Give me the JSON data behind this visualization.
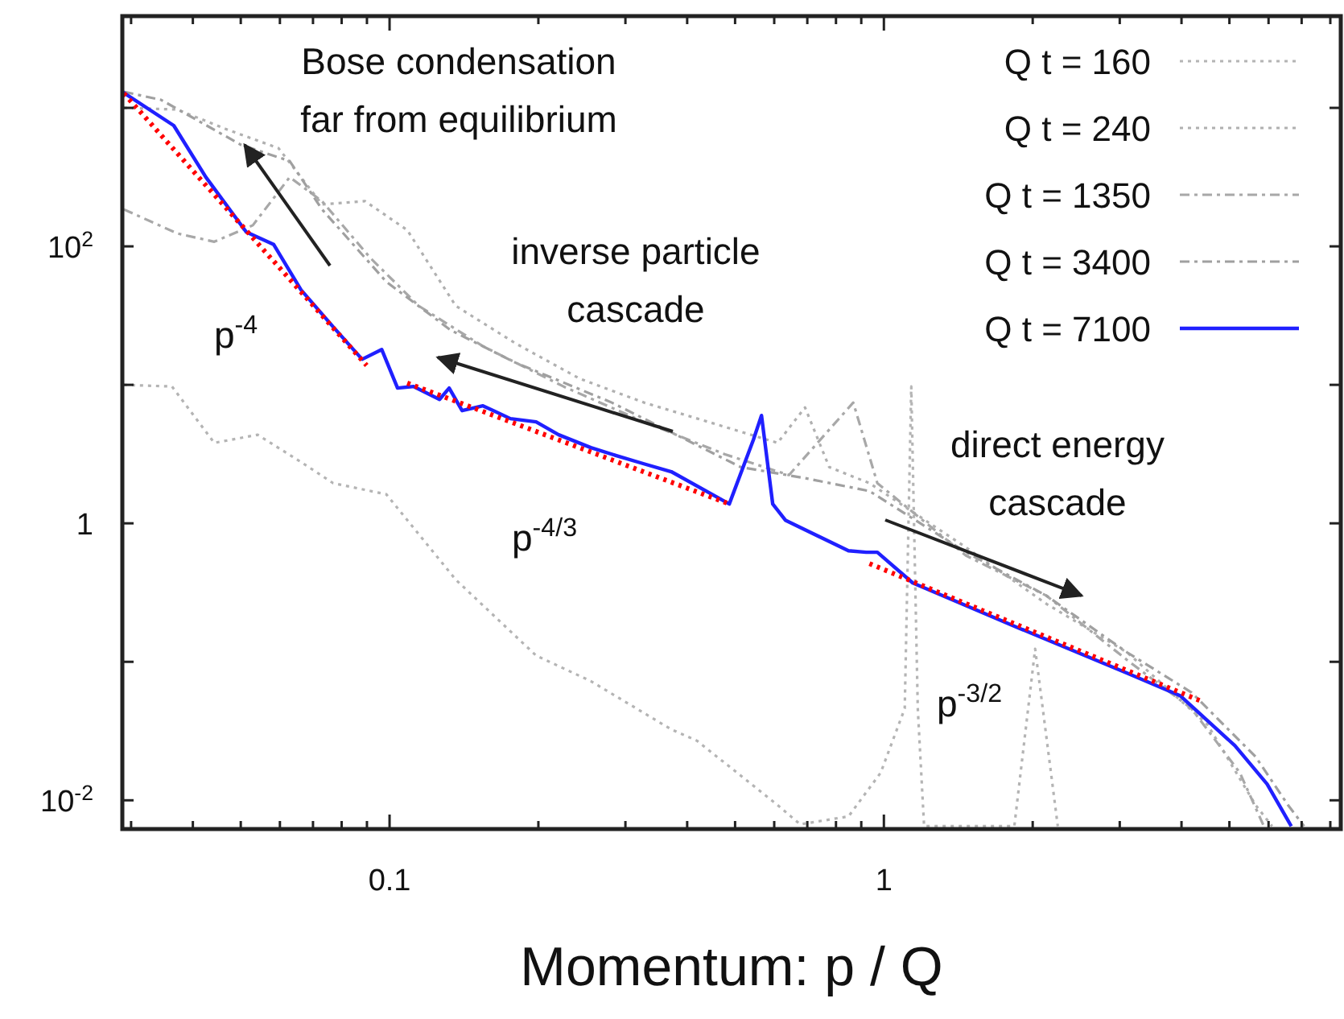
{
  "chart_data": {
    "type": "line",
    "xlabel": "Momentum: p / Q",
    "log": "xy",
    "grid": false,
    "legend": "top right",
    "xlim": [
      0.0288,
      8.4
    ],
    "ylim": [
      0.0062,
      4600
    ],
    "xticks": [
      {
        "value": 0.03,
        "label": null
      },
      {
        "value": 0.04,
        "label": null
      },
      {
        "value": 0.05,
        "label": null
      },
      {
        "value": 0.06,
        "label": null
      },
      {
        "value": 0.07,
        "label": null
      },
      {
        "value": 0.08,
        "label": null
      },
      {
        "value": 0.09,
        "label": null
      },
      0.1,
      {
        "value": 0.2,
        "label": null
      },
      {
        "value": 0.3,
        "label": null
      },
      {
        "value": 0.4,
        "label": null
      },
      {
        "value": 0.5,
        "label": null
      },
      {
        "value": 0.6,
        "label": null
      },
      {
        "value": 0.7,
        "label": null
      },
      {
        "value": 0.8,
        "label": null
      },
      {
        "value": 0.9,
        "label": null
      },
      1,
      {
        "value": 2,
        "label": null
      },
      {
        "value": 3,
        "label": null
      },
      {
        "value": 4,
        "label": null
      },
      {
        "value": 5,
        "label": null
      },
      {
        "value": 6,
        "label": null
      },
      {
        "value": 7,
        "label": null
      },
      {
        "value": 8,
        "label": null
      }
    ],
    "yticks": [
      {
        "value": 0.01,
        "label": "10$^{-2}$"
      },
      {
        "value": 0.1,
        "label": null
      },
      1,
      {
        "value": 10,
        "label": null
      },
      {
        "value": 100,
        "label": "10$^{2}$"
      },
      {
        "value": 1000,
        "label": null
      }
    ],
    "series": [
      {
        "name": "Q t = 160",
        "color": "#b4b4b4",
        "line_style": "dotted",
        "x": [
          0.029,
          0.0363,
          0.0442,
          0.0541,
          0.0662,
          0.0769,
          0.0985,
          0.1361,
          0.1979,
          0.2554,
          0.3715,
          0.4188,
          0.6095,
          0.6772,
          0.848,
          0.985,
          1.102,
          1.136,
          1.171,
          1.206,
          1.836,
          2.023,
          2.248
        ],
        "values": [
          10,
          9.73,
          3.81,
          4.36,
          2.77,
          1.95,
          1.62,
          0.392,
          0.111,
          0.0725,
          0.0325,
          0.0269,
          0.00923,
          0.0067,
          0.00765,
          0.0158,
          0.046,
          9.73,
          0.046,
          0.0065,
          0.0065,
          0.124,
          0.0065
        ]
      },
      {
        "name": "Q t = 240",
        "color": "#b0b0b0",
        "line_style": "dotted",
        "x": [
          0.029,
          0.0372,
          0.0465,
          0.0596,
          0.073,
          0.0892,
          0.1086,
          0.1361,
          0.1795,
          0.2423,
          0.327,
          0.4416,
          0.6095,
          0.6925,
          0.775,
          0.935,
          1.466,
          2.133,
          3.104,
          4.516,
          5.65,
          6.1
        ],
        "values": [
          1000,
          973,
          706,
          512,
          201,
          212,
          131,
          37.2,
          20,
          11.1,
          7.45,
          5.4,
          3.81,
          6.87,
          2.55,
          1.95,
          0.67,
          0.262,
          0.117,
          0.0352,
          0.00923,
          0.0065
        ]
      },
      {
        "name": "Q t = 1350",
        "color": "#a8a8a8",
        "line_style": "dashed",
        "x": [
          0.029,
          0.0372,
          0.0442,
          0.0529,
          0.0628,
          0.073,
          0.0913,
          0.1145,
          0.1545,
          0.2249,
          0.327,
          0.4759,
          0.6427,
          0.867,
          0.97,
          1.466,
          2.133,
          3.104,
          4.19,
          5.25,
          5.87
        ],
        "values": [
          185,
          124,
          108,
          142,
          316,
          212,
          83,
          37.2,
          19,
          9.73,
          5.4,
          3.16,
          2.23,
          7.45,
          1.95,
          0.585,
          0.3,
          0.103,
          0.046,
          0.0158,
          0.0065
        ]
      },
      {
        "name": "Q t = 3400",
        "color": "#a0a0a0",
        "line_style": "dashed",
        "x": [
          0.029,
          0.0345,
          0.0501,
          0.0628,
          0.073,
          0.0985,
          0.133,
          0.1795,
          0.2815,
          0.38,
          0.5129,
          0.6925,
          0.935,
          1.466,
          2.133,
          3.104,
          4.19,
          5.65,
          6.57,
          7.08
        ],
        "values": [
          1307,
          1143,
          540,
          413,
          185,
          55.5,
          24.8,
          14.5,
          7.45,
          4.36,
          2.55,
          2.12,
          1.71,
          0.618,
          0.3,
          0.117,
          0.0601,
          0.0206,
          0.00923,
          0.0065
        ]
      },
      {
        "name": "Q t = 7100",
        "color": "#2020ff",
        "line_style": "solid",
        "x": [
          0.0288,
          0.0366,
          0.0425,
          0.0513,
          0.0583,
          0.0662,
          0.0769,
          0.088,
          0.0964,
          0.1038,
          0.1119,
          0.1262,
          0.132,
          0.1402,
          0.1545,
          0.1756,
          0.1979,
          0.2198,
          0.2554,
          0.2877,
          0.327,
          0.3715,
          0.4867,
          0.5446,
          0.5655,
          0.5958,
          0.6328,
          0.848,
          0.921,
          0.97,
          1.144,
          1.877,
          3.104,
          3.972,
          5.13,
          5.96,
          6.67
        ],
        "values": [
          1307,
          745,
          316,
          127,
          103,
          48.5,
          26.2,
          15.3,
          18,
          9.48,
          9.73,
          7.85,
          9.48,
          6.51,
          7.06,
          5.7,
          5.4,
          4.36,
          3.52,
          3.08,
          2.69,
          2.36,
          1.38,
          4.02,
          6.01,
          1.38,
          1.05,
          0.634,
          0.618,
          0.618,
          0.371,
          0.175,
          0.0829,
          0.057,
          0.0248,
          0.0131,
          0.0065
        ]
      },
      {
        "color": "#ff0000",
        "line_style": "dotted",
        "x": [
          0.029,
          0.0899,
          0.1,
          0.1086,
          0.4867,
          0.7,
          0.935,
          4.35
        ],
        "values": [
          1273,
          13.8,
          null,
          10.3,
          1.38,
          null,
          0.512,
          0.0526
        ]
      }
    ],
    "annotations": [
      "Bose condensation\nfar from equilibrium",
      "inverse particle\ncascade",
      "direct energy\ncascade",
      "p$^{-4}$",
      "p$^{-4/3}$",
      "p$^{-3/2}$"
    ]
  }
}
